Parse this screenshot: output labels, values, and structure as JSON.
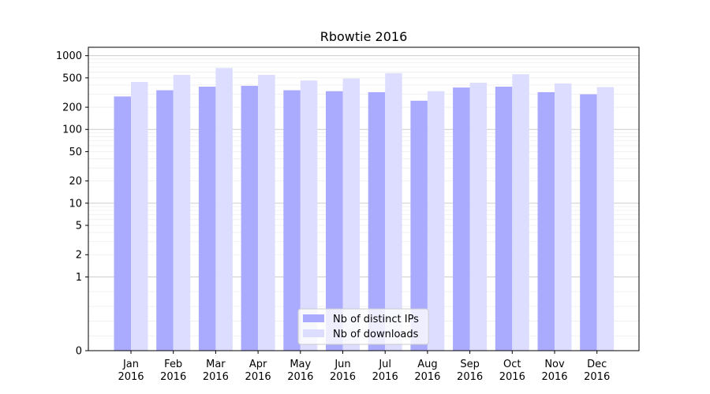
{
  "chart_data": {
    "type": "bar",
    "title": "Rbowtie 2016",
    "xlabel": "",
    "ylabel": "",
    "yscale": "symlog",
    "ylim": [
      0,
      1300
    ],
    "yticks": [
      0,
      1,
      2,
      5,
      10,
      20,
      50,
      100,
      200,
      500,
      1000
    ],
    "grid": true,
    "legend_position": "bottom-center",
    "categories": [
      [
        "Jan",
        "2016"
      ],
      [
        "Feb",
        "2016"
      ],
      [
        "Mar",
        "2016"
      ],
      [
        "Apr",
        "2016"
      ],
      [
        "May",
        "2016"
      ],
      [
        "Jun",
        "2016"
      ],
      [
        "Jul",
        "2016"
      ],
      [
        "Aug",
        "2016"
      ],
      [
        "Sep",
        "2016"
      ],
      [
        "Oct",
        "2016"
      ],
      [
        "Nov",
        "2016"
      ],
      [
        "Dec",
        "2016"
      ]
    ],
    "series": [
      {
        "name": "Nb of distinct IPs",
        "color": "#aaaaff",
        "values": [
          280,
          340,
          380,
          390,
          340,
          330,
          320,
          245,
          370,
          380,
          320,
          300
        ]
      },
      {
        "name": "Nb of downloads",
        "color": "#ddddff",
        "values": [
          440,
          550,
          680,
          550,
          460,
          490,
          580,
          330,
          430,
          560,
          420,
          375
        ]
      }
    ]
  }
}
